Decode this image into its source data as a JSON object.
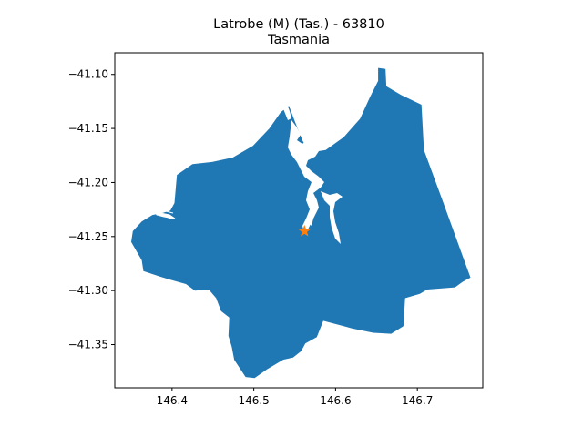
{
  "figure": {
    "title_line1": "Latrobe (M) (Tas.) - 63810",
    "title_line2": "Tasmania"
  },
  "colors": {
    "region_fill": "#1f77b4",
    "marker": "#ff7f0e",
    "axes": "#000000"
  },
  "icons": {
    "marker": "star-icon"
  },
  "chart_data": {
    "type": "map",
    "region_name": "Latrobe (M) (Tas.)",
    "region_code": "63810",
    "state": "Tasmania",
    "xlim": [
      146.33,
      146.78
    ],
    "ylim": [
      -41.39,
      -41.08
    ],
    "x_ticks": [
      146.4,
      146.5,
      146.6,
      146.7
    ],
    "x_tick_labels": [
      "146.4",
      "146.5",
      "146.6",
      "146.7"
    ],
    "y_ticks": [
      -41.1,
      -41.15,
      -41.2,
      -41.25,
      -41.3,
      -41.35
    ],
    "y_tick_labels": [
      "−41.10",
      "−41.15",
      "−41.20",
      "−41.25",
      "−41.30",
      "−41.35"
    ],
    "marker_point": {
      "lon": 146.562,
      "lat": -41.245
    },
    "boundary": [
      [
        146.403,
        -41.219
      ],
      [
        146.406,
        -41.193
      ],
      [
        146.425,
        -41.183
      ],
      [
        146.449,
        -41.181
      ],
      [
        146.474,
        -41.177
      ],
      [
        146.499,
        -41.166
      ],
      [
        146.519,
        -41.15
      ],
      [
        146.533,
        -41.135
      ],
      [
        146.543,
        -41.129
      ],
      [
        146.552,
        -41.147
      ],
      [
        146.56,
        -41.162
      ],
      [
        146.57,
        -41.172
      ],
      [
        146.588,
        -41.17
      ],
      [
        146.61,
        -41.158
      ],
      [
        146.63,
        -41.141
      ],
      [
        146.642,
        -41.121
      ],
      [
        146.652,
        -41.106
      ],
      [
        146.652,
        -41.094
      ],
      [
        146.661,
        -41.095
      ],
      [
        146.662,
        -41.111
      ],
      [
        146.68,
        -41.119
      ],
      [
        146.705,
        -41.128
      ],
      [
        146.708,
        -41.17
      ],
      [
        146.73,
        -41.215
      ],
      [
        146.765,
        -41.288
      ],
      [
        146.755,
        -41.292
      ],
      [
        146.746,
        -41.297
      ],
      [
        146.712,
        -41.299
      ],
      [
        146.703,
        -41.303
      ],
      [
        146.685,
        -41.307
      ],
      [
        146.683,
        -41.333
      ],
      [
        146.668,
        -41.34
      ],
      [
        146.646,
        -41.339
      ],
      [
        146.62,
        -41.335
      ],
      [
        146.585,
        -41.328
      ],
      [
        146.577,
        -41.343
      ],
      [
        146.563,
        -41.349
      ],
      [
        146.558,
        -41.356
      ],
      [
        146.548,
        -41.362
      ],
      [
        146.536,
        -41.364
      ],
      [
        146.516,
        -41.373
      ],
      [
        146.501,
        -41.381
      ],
      [
        146.49,
        -41.38
      ],
      [
        146.476,
        -41.364
      ],
      [
        146.473,
        -41.352
      ],
      [
        146.469,
        -41.342
      ],
      [
        146.47,
        -41.325
      ],
      [
        146.46,
        -41.319
      ],
      [
        146.454,
        -41.307
      ],
      [
        146.445,
        -41.299
      ],
      [
        146.428,
        -41.3
      ],
      [
        146.417,
        -41.294
      ],
      [
        146.398,
        -41.29
      ],
      [
        146.385,
        -41.287
      ],
      [
        146.365,
        -41.282
      ],
      [
        146.363,
        -41.272
      ],
      [
        146.35,
        -41.255
      ],
      [
        146.352,
        -41.245
      ],
      [
        146.363,
        -41.236
      ],
      [
        146.376,
        -41.23
      ],
      [
        146.389,
        -41.228
      ],
      [
        146.398,
        -41.226
      ]
    ]
  }
}
